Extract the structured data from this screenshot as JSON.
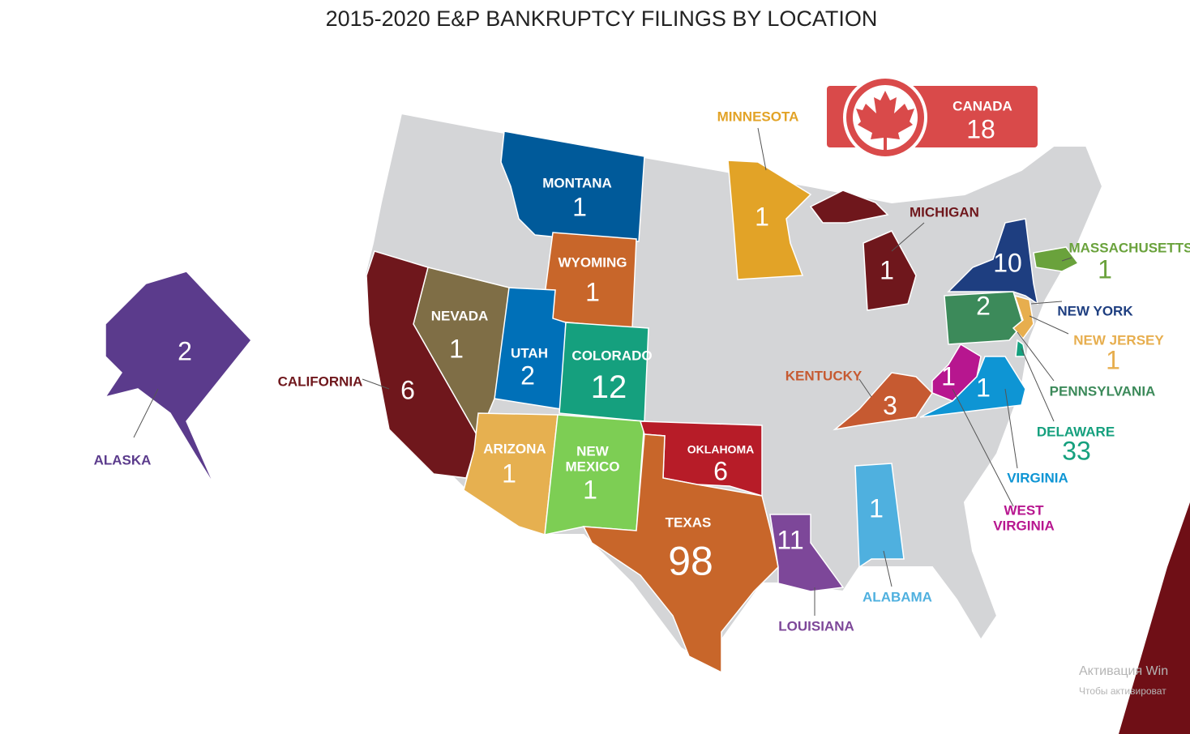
{
  "title": "2015-2020 E&P BANKRUPTCY FILINGS BY LOCATION",
  "canada": {
    "name": "CANADA",
    "count": 18,
    "color": "#d94a4a"
  },
  "states": [
    {
      "name": "MONTANA",
      "count": 1,
      "color": "#005a9a"
    },
    {
      "name": "WYOMING",
      "count": 1,
      "color": "#c8662a"
    },
    {
      "name": "UTAH",
      "count": 2,
      "color": "#0070b8"
    },
    {
      "name": "COLORADO",
      "count": 12,
      "color": "#15a07e"
    },
    {
      "name": "NEVADA",
      "count": 1,
      "color": "#7f6e46"
    },
    {
      "name": "CALIFORNIA",
      "count": 6,
      "color": "#6f171c"
    },
    {
      "name": "ARIZONA",
      "count": 1,
      "color": "#e6b050"
    },
    {
      "name": "NEW MEXICO",
      "count": 1,
      "color": "#7dce54"
    },
    {
      "name": "OKLAHOMA",
      "count": 6,
      "color": "#b71c28"
    },
    {
      "name": "TEXAS",
      "count": 98,
      "color": "#c8662a"
    },
    {
      "name": "LOUISIANA",
      "count": 11,
      "color": "#7d4799"
    },
    {
      "name": "ALABAMA",
      "count": 1,
      "color": "#4fb0df"
    },
    {
      "name": "MINNESOTA",
      "count": 1,
      "color": "#e2a327"
    },
    {
      "name": "MICHIGAN",
      "count": 1,
      "color": "#6f171c"
    },
    {
      "name": "KENTUCKY",
      "count": 3,
      "color": "#c65a31"
    },
    {
      "name": "WEST VIRGINIA",
      "count": 1,
      "color": "#b7168f"
    },
    {
      "name": "VIRGINIA",
      "count": 1,
      "color": "#0e95d4"
    },
    {
      "name": "PENNSYLVANIA",
      "count": 2,
      "color": "#3c8a5a"
    },
    {
      "name": "NEW YORK",
      "count": 10,
      "color": "#1e3e80"
    },
    {
      "name": "NEW JERSEY",
      "count": 1,
      "color": "#e7ae4e"
    },
    {
      "name": "DELAWARE",
      "count": 33,
      "color": "#15a07e"
    },
    {
      "name": "MASSACHUSETTS",
      "count": 1,
      "color": "#6aa23c"
    },
    {
      "name": "ALASKA",
      "count": 2,
      "color": "#5b3b8c"
    }
  ],
  "watermark": [
    "Активация Win",
    "Чтобы активироват"
  ]
}
